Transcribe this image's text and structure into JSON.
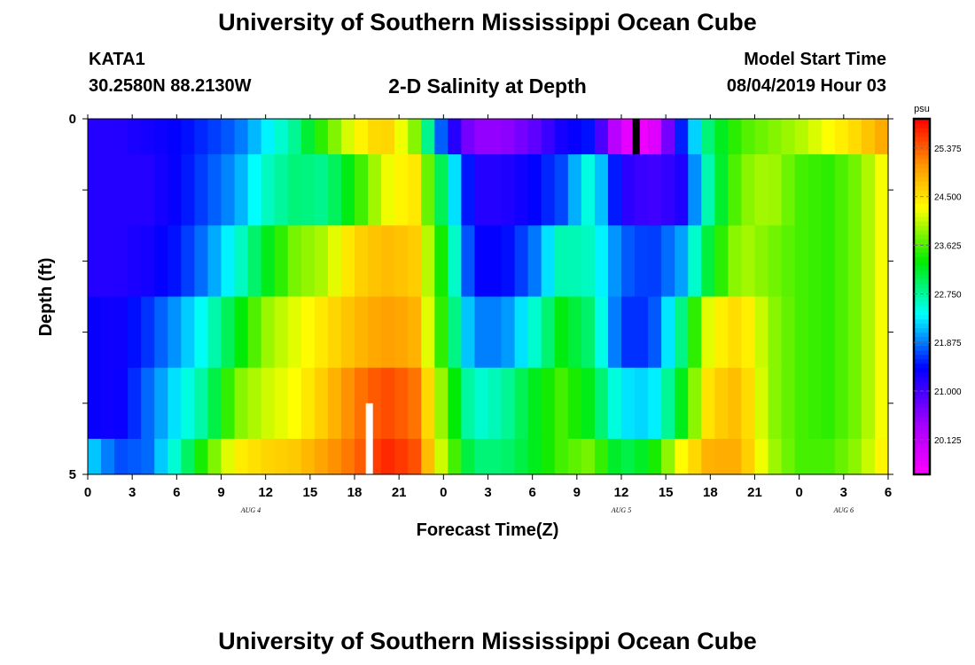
{
  "page": {
    "title_top": "University of Southern Mississippi Ocean Cube",
    "title_bottom": "University of Southern Mississippi Ocean Cube",
    "station": "KATA1",
    "coords": "30.2580N 88.2130W",
    "subtitle": "2-D Salinity at Depth",
    "start_label": "Model Start Time",
    "start_value": "08/04/2019 Hour 03"
  },
  "chart_data": {
    "type": "heatmap",
    "title": "2-D Salinity at Depth",
    "xlabel": "Forecast Time(Z)",
    "ylabel": "Depth (ft)",
    "x_ticks": [
      "0",
      "3",
      "6",
      "9",
      "12",
      "15",
      "18",
      "21",
      "0",
      "3",
      "6",
      "9",
      "12",
      "15",
      "18",
      "21",
      "0",
      "3",
      "6"
    ],
    "x_hours": [
      0,
      3,
      6,
      9,
      12,
      15,
      18,
      21,
      24,
      27,
      30,
      33,
      36,
      39,
      42,
      45,
      48,
      51,
      54
    ],
    "x_range": [
      0,
      54
    ],
    "date_labels": [
      {
        "label": "AUG 4",
        "hour": 11
      },
      {
        "label": "AUG 5",
        "hour": 36
      },
      {
        "label": "AUG 6",
        "hour": 51
      }
    ],
    "y_tick_labels": [
      {
        "depth": 0,
        "label": "0"
      },
      {
        "depth": 5,
        "label": "5"
      }
    ],
    "y_range": [
      0,
      5
    ],
    "layer_depths": [
      0,
      1,
      2,
      3,
      4,
      5
    ],
    "colorbar": {
      "unit": "psu",
      "ticks": [
        20.125,
        21.0,
        21.875,
        22.75,
        23.625,
        24.5,
        25.375
      ],
      "tick_labels": [
        "20.125",
        "21.000",
        "21.875",
        "22.750",
        "23.625",
        "24.500",
        "25.375"
      ],
      "min": 19.5,
      "max": 25.9
    },
    "marker_black": {
      "hour": 37,
      "depth_top": 0,
      "depth_bottom": 0.5
    },
    "marker_white": {
      "hour": 19,
      "depth_top": 4,
      "depth_bottom": 5
    },
    "keyframes_hours": [
      0,
      2,
      4,
      6,
      8,
      10,
      12,
      14,
      16,
      18,
      20,
      22,
      24,
      26,
      28,
      30,
      32,
      34,
      36,
      38,
      40,
      42,
      44,
      46,
      48,
      50,
      52,
      54
    ],
    "layers": [
      [
        21.2,
        21.2,
        21.3,
        21.4,
        21.6,
        21.8,
        22.3,
        22.8,
        23.6,
        24.3,
        24.7,
        23.9,
        21.6,
        20.5,
        20.5,
        20.8,
        21.3,
        21.5,
        19.8,
        19.6,
        21.5,
        23.0,
        23.6,
        23.8,
        24.0,
        24.3,
        24.6,
        25.0
      ],
      [
        21.2,
        21.2,
        21.2,
        21.4,
        21.7,
        22.0,
        22.6,
        22.9,
        22.8,
        23.4,
        24.2,
        24.5,
        22.9,
        21.2,
        21.2,
        21.4,
        21.7,
        22.6,
        21.2,
        21.0,
        21.2,
        22.8,
        23.8,
        24.0,
        23.6,
        23.5,
        23.8,
        24.4
      ],
      [
        21.2,
        21.2,
        21.3,
        21.5,
        21.9,
        22.5,
        23.2,
        23.8,
        24.0,
        24.6,
        24.8,
        24.7,
        23.3,
        21.4,
        21.4,
        21.8,
        22.7,
        22.6,
        21.8,
        21.6,
        22.0,
        23.2,
        24.0,
        23.8,
        23.6,
        23.5,
        23.8,
        24.4
      ],
      [
        21.4,
        21.3,
        21.6,
        22.0,
        22.5,
        23.2,
        23.9,
        24.2,
        24.5,
        24.8,
        25.0,
        24.9,
        23.4,
        21.9,
        21.9,
        22.5,
        23.3,
        22.9,
        21.6,
        21.6,
        22.8,
        24.3,
        24.6,
        23.9,
        23.6,
        23.5,
        23.8,
        24.4
      ],
      [
        21.4,
        21.3,
        21.8,
        22.3,
        22.8,
        23.8,
        24.1,
        24.3,
        24.7,
        25.2,
        25.5,
        25.3,
        23.8,
        22.5,
        22.7,
        23.2,
        23.6,
        23.2,
        22.3,
        22.2,
        23.2,
        24.6,
        24.8,
        23.9,
        23.6,
        23.5,
        23.8,
        24.4
      ],
      [
        22.3,
        21.7,
        21.8,
        22.6,
        23.6,
        24.4,
        24.6,
        24.7,
        25.0,
        25.3,
        25.7,
        25.5,
        24.0,
        22.9,
        22.9,
        23.2,
        23.6,
        23.8,
        23.0,
        23.3,
        24.3,
        24.9,
        24.9,
        24.0,
        23.6,
        23.6,
        23.9,
        24.5
      ]
    ]
  }
}
